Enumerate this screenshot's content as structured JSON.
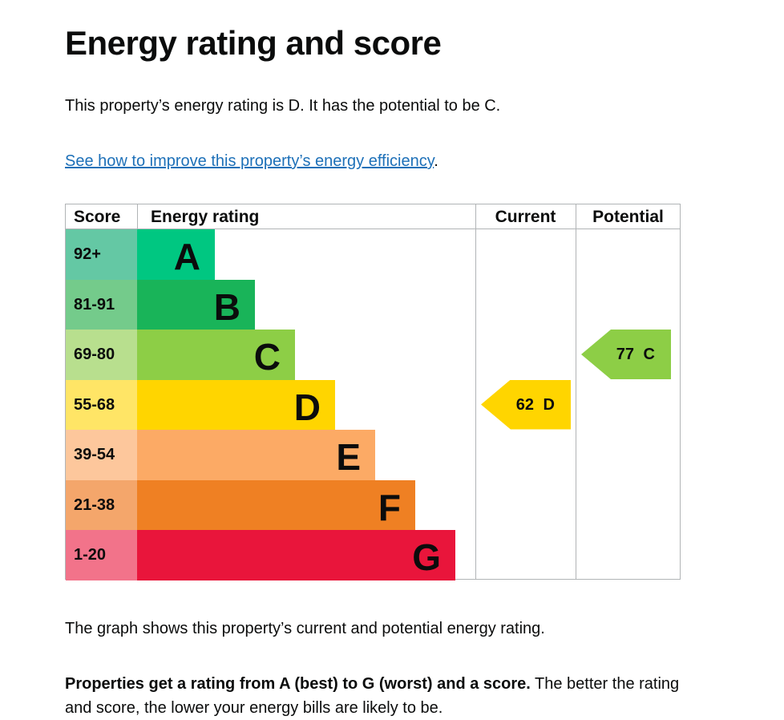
{
  "title": "Energy rating and score",
  "intro": "This property’s energy rating is D. It has the potential to be C.",
  "link": {
    "text": "See how to improve this property’s energy efficiency",
    "after": "."
  },
  "chart_data": {
    "type": "table",
    "headers": [
      "Score",
      "Energy rating",
      "Current",
      "Potential"
    ],
    "bands": [
      {
        "score": "92+",
        "rating": "A",
        "color": "#00c781",
        "score_color": "#64c8a4"
      },
      {
        "score": "81-91",
        "rating": "B",
        "color": "#19b459",
        "score_color": "#74cb8b"
      },
      {
        "score": "69-80",
        "rating": "C",
        "color": "#8dce46",
        "score_color": "#b8df8e"
      },
      {
        "score": "55-68",
        "rating": "D",
        "color": "#ffd500",
        "score_color": "#ffe566"
      },
      {
        "score": "39-54",
        "rating": "E",
        "color": "#fcaa65",
        "score_color": "#fdc79c"
      },
      {
        "score": "21-38",
        "rating": "F",
        "color": "#ef8023",
        "score_color": "#f4a66b"
      },
      {
        "score": "1-20",
        "rating": "G",
        "color": "#e9153b",
        "score_color": "#f2738a"
      }
    ],
    "current": {
      "score": 62,
      "rating": "D",
      "label": "62 D"
    },
    "potential": {
      "score": 77,
      "rating": "C",
      "label": "77 C"
    }
  },
  "caption": "The graph shows this property’s current and potential energy rating.",
  "info_bold": "Properties get a rating from A (best) to G (worst) and a score.",
  "info_rest": " The better the rating and score, the lower your energy bills are likely to be."
}
